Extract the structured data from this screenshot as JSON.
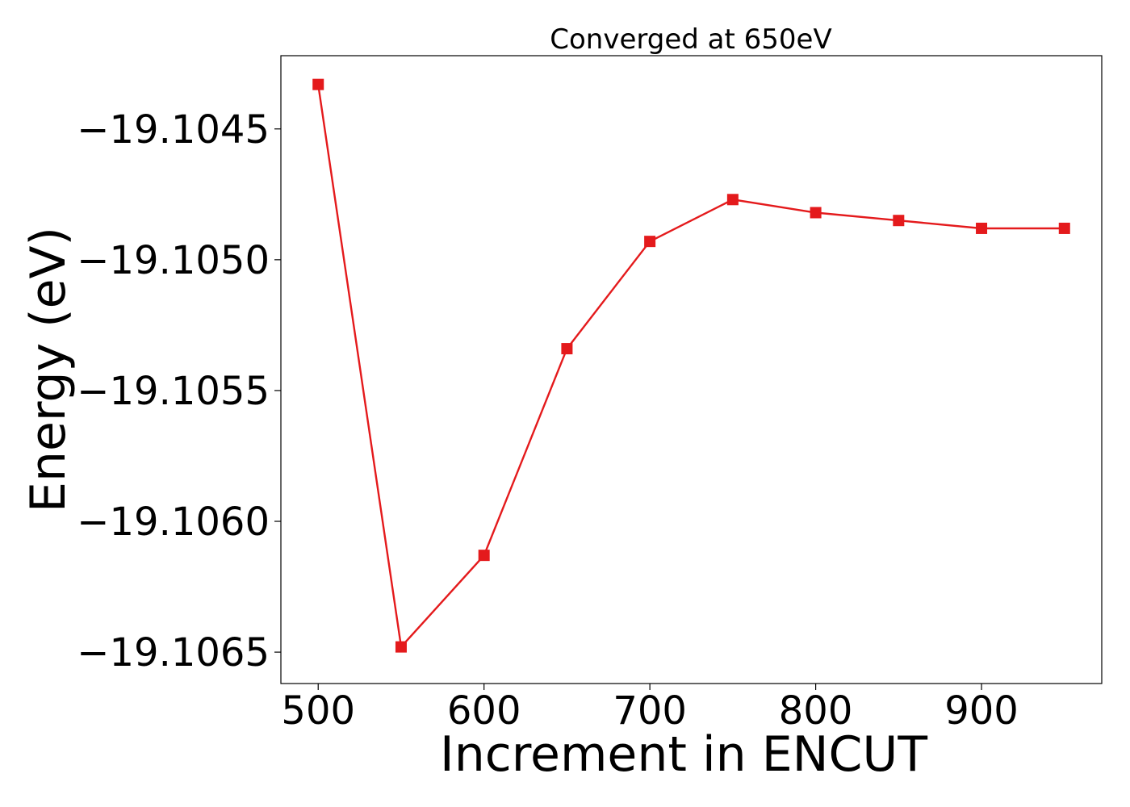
{
  "chart_data": {
    "type": "line",
    "title": "Converged at 650eV",
    "xlabel": "Increment in ENCUT",
    "ylabel": "Energy (eV)",
    "xlim": [
      477.5,
      972.5
    ],
    "ylim": [
      -19.10662,
      -19.10422
    ],
    "xticks": [
      500,
      600,
      700,
      800,
      900
    ],
    "xtick_labels": [
      "500",
      "600",
      "700",
      "800",
      "900"
    ],
    "yticks": [
      -19.1045,
      -19.105,
      -19.1055,
      -19.106,
      -19.1065
    ],
    "ytick_labels": [
      "−19.1045",
      "−19.1050",
      "−19.1055",
      "−19.1060",
      "−19.1065"
    ],
    "grid": false,
    "legend": false,
    "series": [
      {
        "color": "#e41a1c",
        "marker": "square",
        "x": [
          500,
          550,
          600,
          650,
          700,
          750,
          800,
          850,
          900,
          950
        ],
        "y": [
          -19.10433,
          -19.10648,
          -19.10613,
          -19.10534,
          -19.10493,
          -19.10477,
          -19.10482,
          -19.10485,
          -19.10488,
          -19.10488
        ]
      }
    ]
  }
}
